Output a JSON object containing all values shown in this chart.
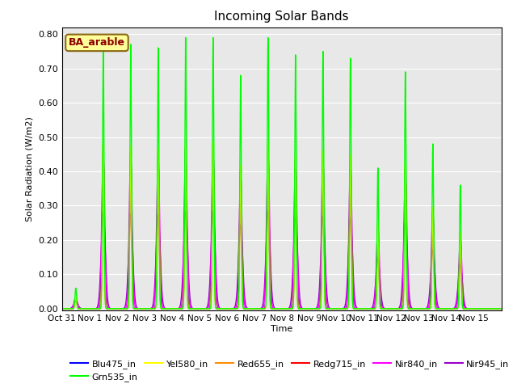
{
  "title": "Incoming Solar Bands",
  "xlabel": "Time",
  "ylabel": "Solar Radiation (W/m2)",
  "annotation": "BA_arable",
  "annotation_color": "#8B0000",
  "annotation_bg": "#FFFF99",
  "annotation_border": "#8B6914",
  "ylim": [
    0.0,
    0.82
  ],
  "yticks": [
    0.0,
    0.1,
    0.2,
    0.3,
    0.4,
    0.5,
    0.6,
    0.7,
    0.8
  ],
  "bg_color": "#E8E8E8",
  "xtick_labels": [
    "Oct 31",
    "Nov 1",
    "Nov 2",
    "Nov 3",
    "Nov 4",
    "Nov 5",
    "Nov 6",
    "Nov 7",
    "Nov 8",
    "Nov 9",
    "Nov 10",
    "Nov 11",
    "Nov 12",
    "Nov 13",
    "Nov 14",
    "Nov 15"
  ],
  "day_peaks_grn": [
    0.06,
    0.78,
    0.77,
    0.76,
    0.79,
    0.79,
    0.68,
    0.79,
    0.74,
    0.75,
    0.73,
    0.41,
    0.69,
    0.48,
    0.36,
    0.0
  ],
  "series_order": [
    "Nir945_in",
    "Nir840_in",
    "Blu475_in",
    "Redg715_in",
    "Red655_in",
    "Yel580_in",
    "Grn535_in"
  ],
  "colors": {
    "Blu475_in": "#0000FF",
    "Grn535_in": "#00FF00",
    "Yel580_in": "#FFFF00",
    "Red655_in": "#FF8C00",
    "Redg715_in": "#FF0000",
    "Nir840_in": "#FF00FF",
    "Nir945_in": "#9900CC"
  },
  "ratios": {
    "Grn535_in": 1.0,
    "Blu475_in": 0.595,
    "Yel580_in": 0.615,
    "Red655_in": 0.61,
    "Redg715_in": 0.6,
    "Nir840_in": 0.58,
    "Nir945_in": 0.36
  },
  "sigma": {
    "Grn535_in": 0.028,
    "Yel580_in": 0.03,
    "Red655_in": 0.032,
    "Redg715_in": 0.034,
    "Blu475_in": 0.036,
    "Nir840_in": 0.055,
    "Nir945_in": 0.075
  },
  "legend_order": [
    "Blu475_in",
    "Grn535_in",
    "Yel580_in",
    "Red655_in",
    "Redg715_in",
    "Nir840_in",
    "Nir945_in"
  ]
}
